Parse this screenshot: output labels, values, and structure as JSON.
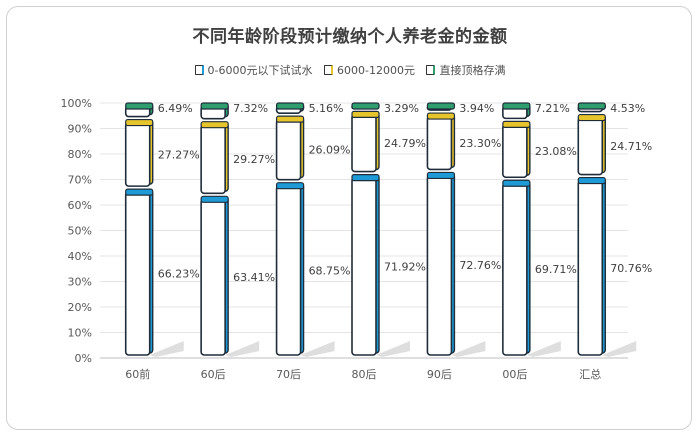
{
  "chart_data": {
    "type": "bar",
    "stacked": true,
    "title": "不同年龄阶段预计缴纳个人养老金的金额",
    "categories": [
      "60前",
      "60后",
      "70后",
      "80后",
      "90后",
      "00后",
      "汇总"
    ],
    "y_ticks": [
      "0%",
      "10%",
      "20%",
      "30%",
      "40%",
      "50%",
      "60%",
      "70%",
      "80%",
      "90%",
      "100%"
    ],
    "ylim": [
      0,
      100
    ],
    "legend_position": "top",
    "grid": true,
    "series": [
      {
        "name": "0-6000元以下试试水",
        "color": "#1e9bd7",
        "values": [
          66.23,
          63.41,
          68.75,
          71.92,
          72.76,
          69.71,
          70.76
        ],
        "labels": [
          "66.23%",
          "63.41%",
          "68.75%",
          "71.92%",
          "72.76%",
          "69.71%",
          "70.76%"
        ]
      },
      {
        "name": "6000-12000元",
        "color": "#e6c42b",
        "values": [
          27.27,
          29.27,
          26.09,
          24.79,
          23.3,
          23.08,
          24.71
        ],
        "labels": [
          "27.27%",
          "29.27%",
          "26.09%",
          "24.79%",
          "23.30%",
          "23.08%",
          "24.71%"
        ]
      },
      {
        "name": "直接顶格存满",
        "color": "#2e9e6e",
        "values": [
          6.49,
          7.32,
          5.16,
          3.29,
          3.94,
          7.21,
          4.53
        ],
        "labels": [
          "6.49%",
          "7.32%",
          "5.16%",
          "3.29%",
          "3.94%",
          "7.21%",
          "4.53%"
        ]
      }
    ]
  }
}
